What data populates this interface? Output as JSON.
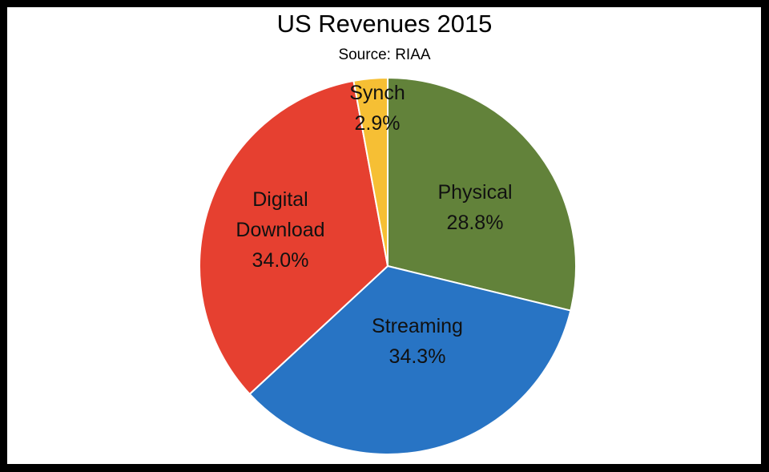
{
  "chart_data": {
    "type": "pie",
    "title": "US Revenues 2015",
    "subtitle": "Source: RIAA",
    "slices": [
      {
        "label": "Physical",
        "value": 28.8,
        "display": "28.8%",
        "color": "#62823a"
      },
      {
        "label": "Streaming",
        "value": 34.3,
        "display": "34.3%",
        "color": "#2874c4"
      },
      {
        "label": "Digital Download",
        "display": "34.0%",
        "value": 34.0,
        "color": "#e64030"
      },
      {
        "label": "Synch",
        "value": 2.9,
        "display": "2.9%",
        "color": "#f6bf34"
      }
    ],
    "start_angle": "12 o'clock",
    "direction": "clockwise",
    "legend": "none"
  }
}
